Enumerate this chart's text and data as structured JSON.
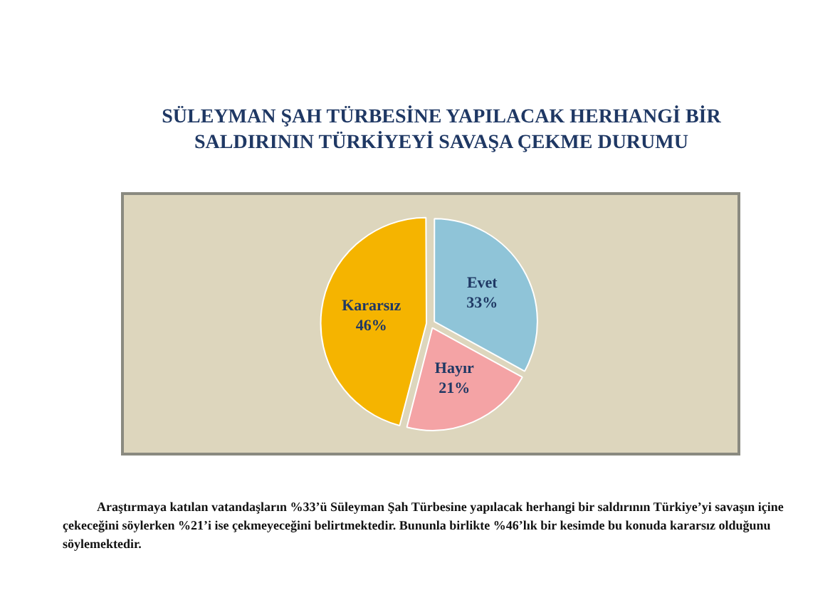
{
  "chart_data": {
    "type": "pie",
    "title": "SÜLEYMAN ŞAH TÜRBESİNE YAPILACAK HERHANGİ BİR SALDIRININ TÜRKİYEYİ SAVAŞA ÇEKME DURUMU",
    "categories": [
      "Evet",
      "Hayır",
      "Kararsız"
    ],
    "values": [
      33,
      21,
      46
    ],
    "colors": [
      "#8fc4d8",
      "#f4a3a5",
      "#f5b400"
    ],
    "value_labels": [
      "33%",
      "21%",
      "46%"
    ],
    "annotations": [
      "Araştırmaya katılan vatandaşların %33’ü Süleyman Şah Türbesine yapılacak herhangi bir saldırının Türkiye’yi savaşın içine çekeceğini söylerken %21’i ise çekmeyeceğini belirtmektedir. Bununla birlikte %46’lık bir kesimde bu konuda kararsız olduğunu söylemektedir."
    ]
  }
}
